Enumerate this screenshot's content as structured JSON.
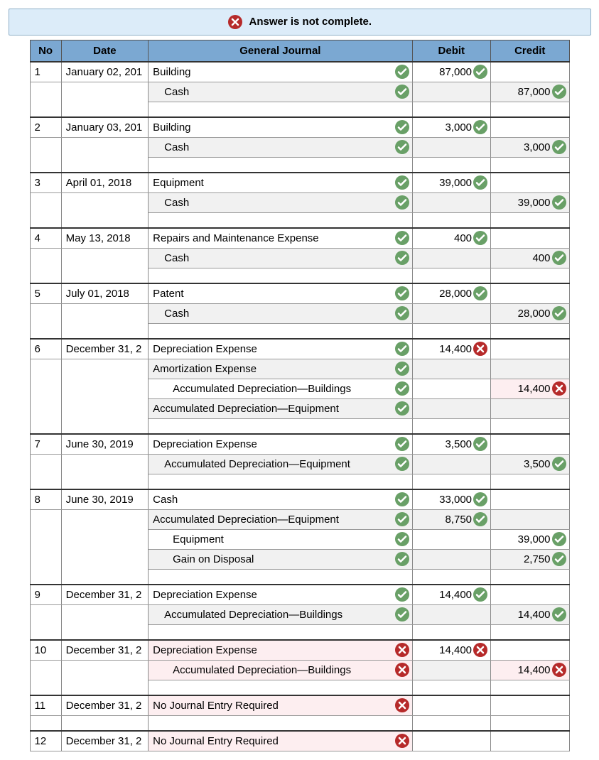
{
  "banner": {
    "text": "Answer is not complete.",
    "bg": "#dcecf9",
    "icon": "cross"
  },
  "colors": {
    "header_bg": "#7ba8d2",
    "ok": "#69a067",
    "bad": "#b62a2a",
    "shade": "#f1f1f1",
    "pink": "#fdeef0"
  },
  "headers": {
    "no": "No",
    "date": "Date",
    "gj": "General Journal",
    "debit": "Debit",
    "credit": "Credit"
  },
  "entries": [
    {
      "no": "1",
      "date": "January 02, 201",
      "lines": [
        {
          "acc": "Building",
          "indent": 0,
          "stA": "ok",
          "debit": "87,000",
          "stD": "ok"
        },
        {
          "acc": "Cash",
          "indent": 1,
          "stA": "ok",
          "credit": "87,000",
          "stC": "ok",
          "shade": true
        }
      ]
    },
    {
      "no": "2",
      "date": "January 03, 201",
      "lines": [
        {
          "acc": "Building",
          "indent": 0,
          "stA": "ok",
          "debit": "3,000",
          "stD": "ok"
        },
        {
          "acc": "Cash",
          "indent": 1,
          "stA": "ok",
          "credit": "3,000",
          "stC": "ok",
          "shade": true
        }
      ]
    },
    {
      "no": "3",
      "date": "April 01, 2018",
      "lines": [
        {
          "acc": "Equipment",
          "indent": 0,
          "stA": "ok",
          "debit": "39,000",
          "stD": "ok"
        },
        {
          "acc": "Cash",
          "indent": 1,
          "stA": "ok",
          "credit": "39,000",
          "stC": "ok",
          "shade": true
        }
      ]
    },
    {
      "no": "4",
      "date": "May 13, 2018",
      "lines": [
        {
          "acc": "Repairs and Maintenance Expense",
          "indent": 0,
          "stA": "ok",
          "debit": "400",
          "stD": "ok"
        },
        {
          "acc": "Cash",
          "indent": 1,
          "stA": "ok",
          "credit": "400",
          "stC": "ok",
          "shade": true
        }
      ]
    },
    {
      "no": "5",
      "date": "July 01, 2018",
      "lines": [
        {
          "acc": "Patent",
          "indent": 0,
          "stA": "ok",
          "debit": "28,000",
          "stD": "ok"
        },
        {
          "acc": "Cash",
          "indent": 1,
          "stA": "ok",
          "credit": "28,000",
          "stC": "ok",
          "shade": true
        }
      ]
    },
    {
      "no": "6",
      "date": "December 31, 2",
      "lines": [
        {
          "acc": "Depreciation Expense",
          "indent": 0,
          "stA": "ok",
          "debit": "14,400",
          "stD": "bad"
        },
        {
          "acc": "Amortization Expense",
          "indent": 0,
          "stA": "ok",
          "shade": true
        },
        {
          "acc": "Accumulated Depreciation—Buildings",
          "indent": 2,
          "stA": "ok",
          "credit": "14,400",
          "stC": "bad",
          "creditPink": true
        },
        {
          "acc": "Accumulated Depreciation—Equipment",
          "indent": 0,
          "stA": "ok",
          "shade": true
        }
      ]
    },
    {
      "no": "7",
      "date": "June 30, 2019",
      "lines": [
        {
          "acc": "Depreciation Expense",
          "indent": 0,
          "stA": "ok",
          "debit": "3,500",
          "stD": "ok"
        },
        {
          "acc": "Accumulated Depreciation—Equipment",
          "indent": 1,
          "stA": "ok",
          "credit": "3,500",
          "stC": "ok",
          "shade": true
        }
      ]
    },
    {
      "no": "8",
      "date": "June 30, 2019",
      "lines": [
        {
          "acc": "Cash",
          "indent": 0,
          "stA": "ok",
          "debit": "33,000",
          "stD": "ok"
        },
        {
          "acc": "Accumulated Depreciation—Equipment",
          "indent": 0,
          "stA": "ok",
          "debit": "8,750",
          "stD": "ok",
          "shade": true
        },
        {
          "acc": "Equipment",
          "indent": 2,
          "stA": "ok",
          "credit": "39,000",
          "stC": "ok"
        },
        {
          "acc": "Gain on Disposal",
          "indent": 2,
          "stA": "ok",
          "credit": "2,750",
          "stC": "ok",
          "shade": true
        }
      ]
    },
    {
      "no": "9",
      "date": "December 31, 2",
      "lines": [
        {
          "acc": "Depreciation Expense",
          "indent": 0,
          "stA": "ok",
          "debit": "14,400",
          "stD": "ok"
        },
        {
          "acc": "Accumulated Depreciation—Buildings",
          "indent": 1,
          "stA": "ok",
          "credit": "14,400",
          "stC": "ok",
          "shade": true
        }
      ]
    },
    {
      "no": "10",
      "date": "December 31, 2",
      "lines": [
        {
          "acc": "Depreciation Expense",
          "indent": 0,
          "stA": "bad",
          "debit": "14,400",
          "stD": "bad",
          "accPink": true
        },
        {
          "acc": "Accumulated Depreciation—Buildings",
          "indent": 2,
          "stA": "bad",
          "credit": "14,400",
          "stC": "bad",
          "shade": true,
          "creditPink": true,
          "accPink": true
        }
      ]
    },
    {
      "no": "11",
      "date": "December 31, 2",
      "lines": [
        {
          "acc": "No Journal Entry Required",
          "indent": 0,
          "stA": "bad",
          "accPink": true
        }
      ]
    },
    {
      "no": "12",
      "date": "December 31, 2",
      "lines": [
        {
          "acc": "No Journal Entry Required",
          "indent": 0,
          "stA": "bad",
          "accPink": true
        }
      ]
    }
  ]
}
